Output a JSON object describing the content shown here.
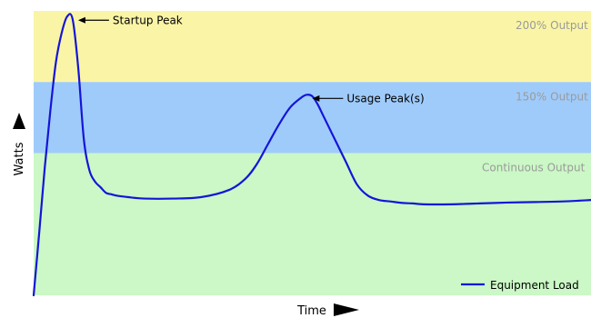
{
  "chart_data": {
    "type": "line",
    "title": "",
    "xlabel": "Time",
    "ylabel": "Watts",
    "grid": false,
    "legend_position": "bottom-right",
    "xlim": [
      0,
      100
    ],
    "ylim": [
      0,
      100
    ],
    "zones": [
      {
        "label": "200% Output",
        "from": 75,
        "to": 100,
        "color": "#faf5a6"
      },
      {
        "label": "150% Output",
        "from": 50,
        "to": 75,
        "color": "#9fcbfb"
      },
      {
        "label": "Continuous Output",
        "from": 0,
        "to": 50,
        "color": "#cbf8c6"
      }
    ],
    "series": [
      {
        "name": "Equipment Load",
        "color": "#1515d8",
        "x": [
          0,
          1,
          2,
          3,
          4,
          5,
          6,
          7,
          8,
          9,
          10,
          11,
          12,
          13,
          14,
          15,
          17,
          20,
          25,
          30,
          35,
          38,
          40,
          42,
          44,
          46,
          48,
          49,
          50,
          51,
          52,
          54,
          56,
          58,
          60,
          62,
          64,
          66,
          68,
          70,
          75,
          80,
          85,
          90,
          95,
          100
        ],
        "y": [
          0,
          22,
          45,
          65,
          82,
          92,
          98,
          97,
          80,
          55,
          44,
          40,
          38,
          36,
          35.5,
          35,
          34.5,
          34,
          34,
          34.5,
          37,
          41,
          46,
          53,
          60,
          66,
          69.5,
          70.5,
          70,
          67,
          63,
          55,
          47,
          39,
          35,
          33.5,
          33,
          32.5,
          32.3,
          32,
          32,
          32.3,
          32.6,
          32.8,
          33,
          33.5
        ]
      }
    ],
    "annotations": [
      {
        "text": "Startup Peak",
        "x": 7,
        "y": 98
      },
      {
        "text": "Usage Peak(s)",
        "x": 49,
        "y": 70.5
      }
    ]
  }
}
